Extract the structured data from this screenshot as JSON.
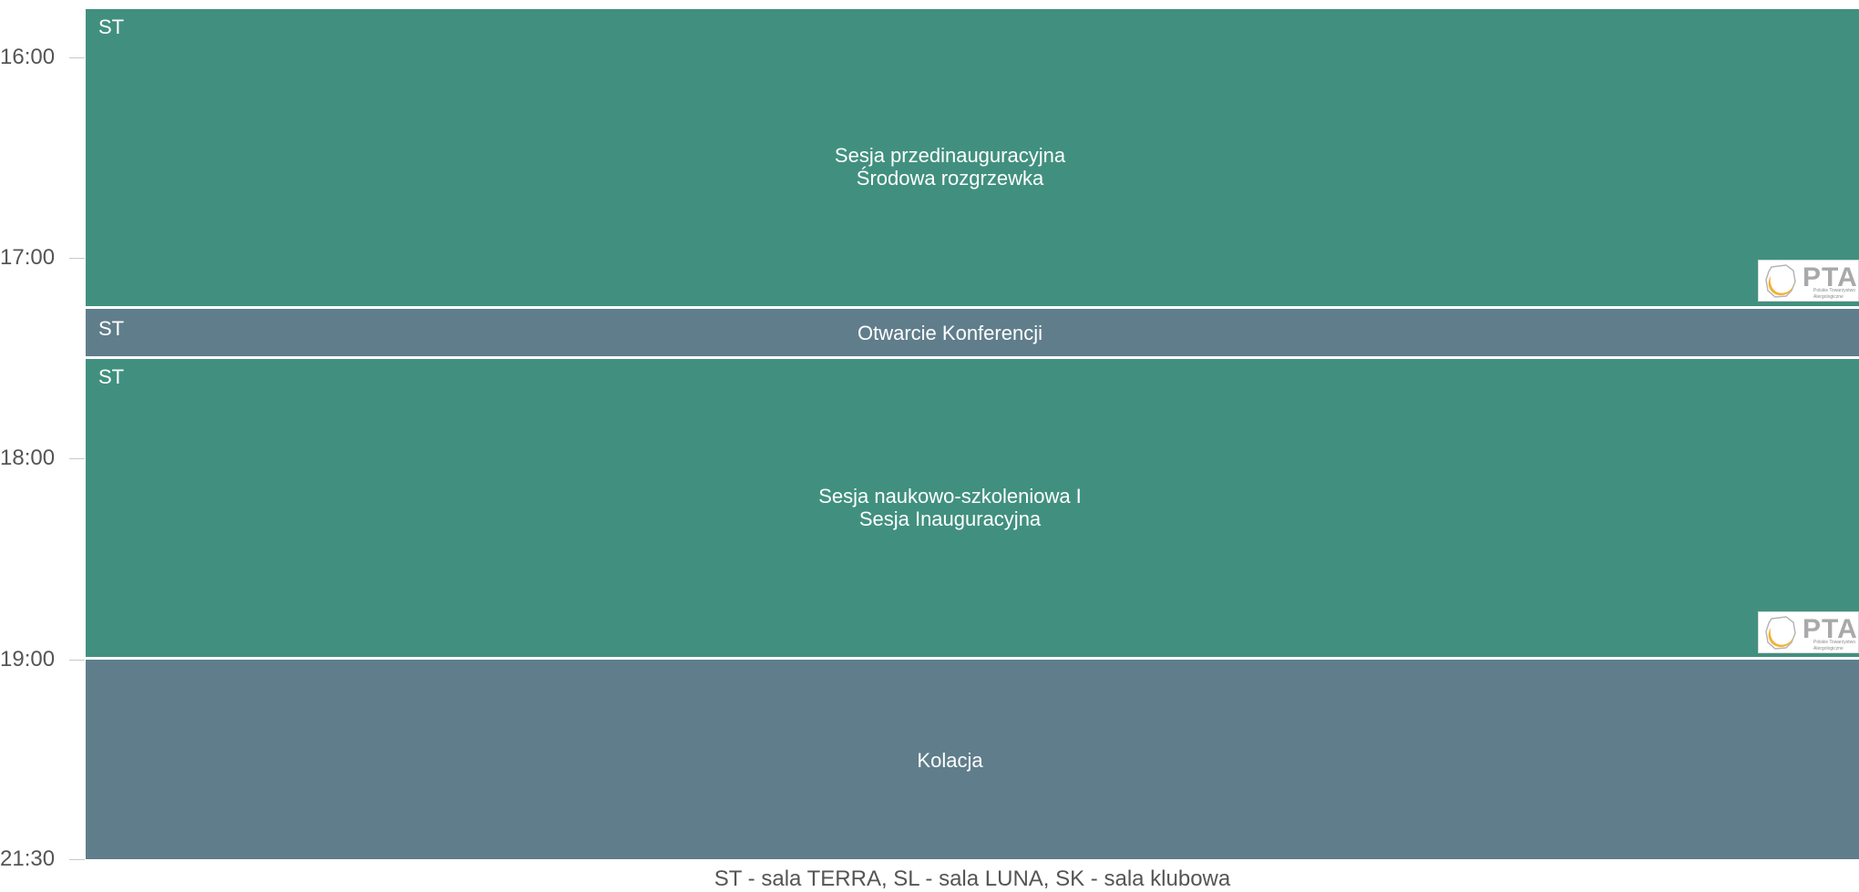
{
  "time_axis": {
    "labels": [
      "16:00",
      "17:00",
      "18:00",
      "19:00",
      "21:30"
    ]
  },
  "blocks": [
    {
      "room": "ST",
      "title_lines": [
        "Sesja przedinauguracyjna",
        "Środowa rozgrzewka"
      ],
      "color": "#41907f",
      "logo": {
        "text": "PTA",
        "lines": [
          "Polskie Towarzystwo",
          "Alergologiczne"
        ]
      }
    },
    {
      "room": "ST",
      "title_lines": [
        "Otwarcie Konferencji"
      ],
      "color": "#607d8b"
    },
    {
      "room": "ST",
      "title_lines": [
        "Sesja naukowo-szkoleniowa I",
        "Sesja Inauguracyjna"
      ],
      "color": "#41907f",
      "logo": {
        "text": "PTA",
        "lines": [
          "Polskie Towarzystwo",
          "Alergologiczne"
        ]
      }
    },
    {
      "room": "",
      "title_lines": [
        "Kolacja"
      ],
      "color": "#607d8b"
    }
  ],
  "legend": "ST - sala TERRA, SL - sala LUNA, SK - sala klubowa",
  "colors": {
    "session": "#41907f",
    "event": "#607d8b",
    "axis_text": "#555555"
  }
}
